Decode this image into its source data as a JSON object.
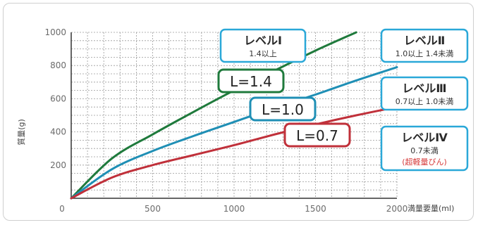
{
  "chart_data": {
    "type": "line",
    "xlabel": "満量要量(ml)",
    "ylabel": "質量(g)",
    "xlim": [
      0,
      2000
    ],
    "ylim": [
      0,
      1000
    ],
    "x_ticks": [
      "0",
      "500",
      "1000",
      "1500",
      "2000"
    ],
    "y_ticks": [
      "200",
      "400",
      "600",
      "800",
      "1000"
    ],
    "grid": true,
    "series": [
      {
        "name": "L=1.4",
        "color": "#1f7a3c",
        "x": [
          0,
          250,
          500,
          750,
          1000,
          1250,
          1500,
          1750
        ],
        "y": [
          0,
          240,
          385,
          520,
          650,
          770,
          890,
          1000
        ]
      },
      {
        "name": "L=1.0",
        "color": "#1f8fb5",
        "x": [
          0,
          250,
          500,
          750,
          1000,
          1250,
          1500,
          1750,
          2000
        ],
        "y": [
          0,
          175,
          285,
          375,
          460,
          545,
          625,
          710,
          790
        ]
      },
      {
        "name": "L=0.7",
        "color": "#c0303a",
        "x": [
          0,
          250,
          500,
          750,
          1000,
          1250,
          1500,
          1750,
          2000
        ],
        "y": [
          0,
          125,
          200,
          260,
          320,
          385,
          445,
          500,
          550
        ]
      }
    ],
    "levels": [
      {
        "title": "レベルⅠ",
        "desc": "1.4以上",
        "note": "",
        "color": "#2aa8d8"
      },
      {
        "title": "レベルⅡ",
        "desc": "1.0以上 1.4未満",
        "note": "",
        "color": "#2aa8d8"
      },
      {
        "title": "レベルⅢ",
        "desc": "0.7以上 1.0未満",
        "note": "",
        "color": "#2aa8d8"
      },
      {
        "title": "レベルⅣ",
        "desc": "0.7未満",
        "note": "(超軽量びん)",
        "color": "#2aa8d8"
      }
    ]
  }
}
